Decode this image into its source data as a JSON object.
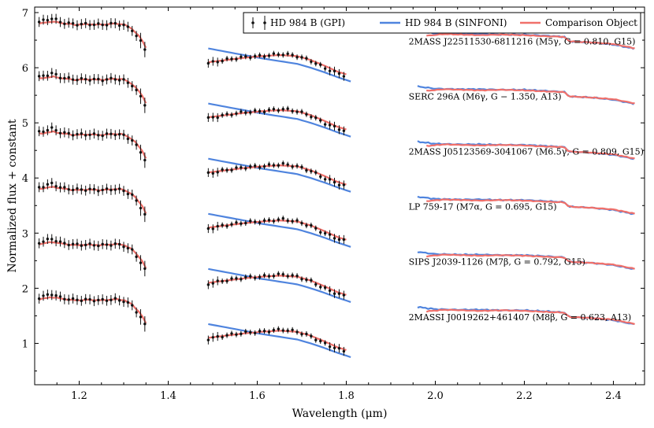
{
  "colors": {
    "gpi": "#111111",
    "sinfoni": "#4f84de",
    "comparison": "#f0706a"
  },
  "chart_data": {
    "type": "line",
    "xlabel": "Wavelength (μm)",
    "ylabel": "Normalized flux + constant",
    "xlim": [
      1.1,
      2.47
    ],
    "ylim": [
      0.25,
      7.1
    ],
    "xticks": [
      1.2,
      1.4,
      1.6,
      1.8,
      2.0,
      2.2,
      2.4
    ],
    "xtick_labels": [
      "1.2",
      "1.4",
      "1.6",
      "1.8",
      "2.0",
      "2.2",
      "2.4"
    ],
    "yticks": [
      1,
      2,
      3,
      4,
      5,
      6,
      7
    ],
    "ytick_labels": [
      "1",
      "2",
      "3",
      "4",
      "5",
      "6",
      "7"
    ],
    "legend": {
      "position": "top-right",
      "entries": [
        "HD 984 B (GPI)",
        "HD 984 B (SINFONI)",
        "Comparison Object"
      ]
    },
    "offsets": [
      6,
      5,
      4,
      3,
      2,
      1
    ],
    "annotations": [
      {
        "label": "2MASS J22511530-6811216 (M5γ, G = 0.810, G15)",
        "y": 6.48
      },
      {
        "label": "SERC 296A (M6γ, G − 1.350, A13)",
        "y": 5.48
      },
      {
        "label": "2MASS J05123569-3041067 (M6.5γ, G = 0.809, G15)",
        "y": 4.48
      },
      {
        "label": "LP 759-17 (M7α, G = 0.695, G15)",
        "y": 3.48
      },
      {
        "label": "SIPS J2039-1126 (M7β, G = 0.792, G15)",
        "y": 2.48
      },
      {
        "label": "2MASSI J0019262+461407 (M8β, G = 0.623, A13)",
        "y": 1.48
      }
    ],
    "series": [
      {
        "name": "HD 984 B (GPI) J-band",
        "x": [
          1.11,
          1.14,
          1.16,
          1.19,
          1.22,
          1.25,
          1.28,
          1.3,
          1.32,
          1.34,
          1.35
        ],
        "y": [
          0.83,
          0.9,
          0.82,
          0.79,
          0.79,
          0.78,
          0.8,
          0.77,
          0.68,
          0.45,
          0.3
        ]
      },
      {
        "name": "HD 984 B (GPI) H-band",
        "x": [
          1.49,
          1.52,
          1.55,
          1.58,
          1.61,
          1.64,
          1.66,
          1.69,
          1.72,
          1.75,
          1.78,
          1.8
        ],
        "y": [
          0.08,
          0.13,
          0.17,
          0.2,
          0.21,
          0.24,
          0.25,
          0.21,
          0.13,
          0.0,
          -0.1,
          -0.15
        ]
      },
      {
        "name": "HD 984 B (SINFONI) H-band",
        "x": [
          1.49,
          1.53,
          1.57,
          1.61,
          1.65,
          1.69,
          1.72,
          1.75,
          1.78,
          1.81
        ],
        "y": [
          0.35,
          0.29,
          0.23,
          0.17,
          0.12,
          0.07,
          0.0,
          -0.08,
          -0.17,
          -0.25
        ]
      },
      {
        "name": "HD 984 B (SINFONI) K-band",
        "x": [
          1.96,
          2.0,
          2.05,
          2.1,
          2.15,
          2.2,
          2.25,
          2.29,
          2.3,
          2.35,
          2.4,
          2.45
        ],
        "y": [
          0.66,
          0.62,
          0.61,
          0.61,
          0.6,
          0.6,
          0.58,
          0.56,
          0.48,
          0.46,
          0.42,
          0.34
        ]
      },
      {
        "name": "Comparison Object J-band",
        "x": [
          1.11,
          1.14,
          1.16,
          1.19,
          1.22,
          1.25,
          1.28,
          1.3,
          1.32,
          1.34,
          1.35
        ],
        "y": [
          0.8,
          0.84,
          0.81,
          0.78,
          0.79,
          0.78,
          0.8,
          0.79,
          0.7,
          0.52,
          0.36
        ]
      },
      {
        "name": "Comparison Object H-band",
        "x": [
          1.49,
          1.53,
          1.57,
          1.61,
          1.65,
          1.69,
          1.72,
          1.75,
          1.78,
          1.8
        ],
        "y": [
          0.1,
          0.14,
          0.18,
          0.21,
          0.23,
          0.21,
          0.14,
          0.04,
          -0.07,
          -0.12
        ]
      },
      {
        "name": "Comparison Object K-band",
        "x": [
          1.98,
          2.02,
          2.06,
          2.1,
          2.15,
          2.2,
          2.25,
          2.29,
          2.3,
          2.35,
          2.4,
          2.45
        ],
        "y": [
          0.58,
          0.61,
          0.6,
          0.59,
          0.6,
          0.59,
          0.57,
          0.56,
          0.48,
          0.46,
          0.43,
          0.35
        ]
      }
    ]
  }
}
